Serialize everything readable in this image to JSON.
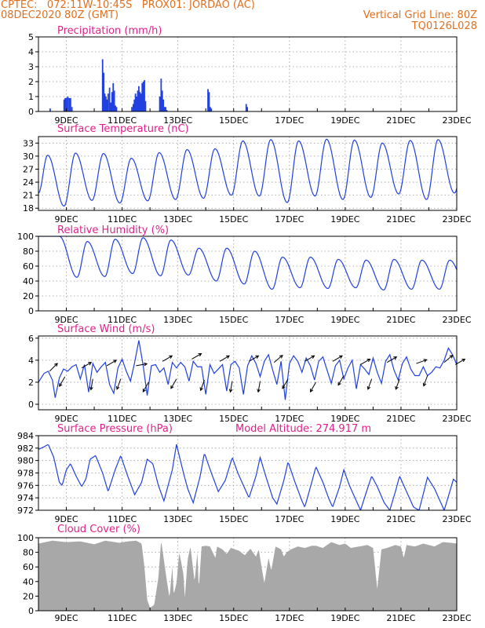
{
  "header": {
    "line1_left": "CPTEC:   072:11W-10:45S   PROX01: JORDAO (AC)",
    "line2_left": "08DEC2020 80Z (GMT)",
    "line2_right": "Vertical Grid Line: 80Z",
    "line3_right": "TQ0126L028",
    "color": "#e07020"
  },
  "colors": {
    "title": "#e0208a",
    "series": "#2040e0",
    "cloud": "#a8a8a8",
    "grid": "#9a9a9a",
    "axis": "#000000",
    "header": "#e07020"
  },
  "x_axis": {
    "start_day": 8,
    "end_day": 23,
    "tick_labels": [
      "9DEC",
      "11DEC",
      "13DEC",
      "15DEC",
      "17DEC",
      "19DEC",
      "21DEC",
      "23DEC"
    ],
    "tick_days": [
      9,
      11,
      13,
      15,
      17,
      19,
      21,
      23
    ]
  },
  "chart_data": [
    {
      "type": "bar",
      "title": "Precipitation (mm/h)",
      "xlabel": "",
      "ylabel": "",
      "ylim": [
        0,
        5
      ],
      "yticks": [
        0,
        1,
        2,
        3,
        4,
        5
      ],
      "bar_width_days": 0.05,
      "x": [
        8.42,
        8.92,
        8.96,
        9.0,
        9.05,
        9.1,
        9.15,
        9.2,
        10.3,
        10.34,
        10.38,
        10.42,
        10.46,
        10.5,
        10.55,
        10.6,
        10.64,
        10.68,
        10.72,
        10.76,
        10.8,
        11.35,
        11.4,
        11.44,
        11.48,
        11.52,
        11.56,
        11.6,
        11.64,
        11.68,
        11.72,
        11.76,
        11.8,
        11.84,
        12.35,
        12.4,
        12.44,
        12.48,
        12.52,
        12.56,
        12.6,
        14.08,
        14.12,
        14.16,
        14.2,
        15.45,
        15.49
      ],
      "values": [
        0.2,
        0.8,
        0.9,
        0.9,
        1.0,
        0.9,
        0.9,
        0.3,
        3.5,
        2.6,
        1.2,
        1.0,
        0.8,
        1.2,
        1.6,
        0.6,
        1.3,
        1.9,
        1.4,
        0.4,
        0.3,
        0.3,
        0.5,
        0.8,
        1.2,
        1.0,
        1.4,
        1.7,
        1.3,
        1.2,
        1.9,
        2.0,
        2.1,
        0.7,
        1.0,
        2.2,
        1.4,
        0.8,
        0.3,
        0.3,
        0.1,
        1.5,
        1.3,
        0.3,
        0.2,
        0.5,
        0.3
      ]
    },
    {
      "type": "line",
      "title": "Surface Temperature (nC)",
      "xlabel": "",
      "ylabel": "",
      "ylim": [
        17.5,
        34.5
      ],
      "yticks": [
        18,
        21,
        24,
        27,
        30,
        33
      ],
      "daily_cycle": {
        "max_phase_days": 0.33,
        "min_phase_days": 0.92,
        "daily_max": [
          30.2,
          30.7,
          30.6,
          29.5,
          30.8,
          31.5,
          31.7,
          33.5,
          33.8,
          33.5,
          33.9,
          33.7,
          33.0,
          33.6,
          33.8,
          33.5
        ],
        "daily_min": [
          18.5,
          19.8,
          19.2,
          19.7,
          20.0,
          20.3,
          21.0,
          20.8,
          19.3,
          20.8,
          20.0,
          20.5,
          21.3,
          20.0,
          21.5,
          22.5
        ]
      },
      "start_value": 21.5
    },
    {
      "type": "line",
      "title": "Relative Humidity (%)",
      "xlabel": "",
      "ylabel": "",
      "ylim": [
        0,
        100
      ],
      "yticks": [
        0,
        20,
        40,
        60,
        80,
        100
      ],
      "daily_cycle": {
        "max_phase_days": 0.75,
        "min_phase_days": 0.38,
        "daily_max": [
          100,
          93,
          96,
          98,
          95,
          84,
          84,
          80,
          72,
          72,
          69,
          68,
          69,
          68,
          68,
          66
        ],
        "daily_min": [
          100,
          45,
          46,
          50,
          47,
          48,
          40,
          36,
          29,
          31,
          30,
          31,
          28,
          29,
          29,
          30
        ]
      },
      "end_value": 35
    },
    {
      "type": "line",
      "title": "Surface Wind (m/s)",
      "xlabel": "",
      "ylabel": "",
      "ylim": [
        -0.5,
        6.2
      ],
      "yticks": [
        0,
        2,
        4,
        6
      ],
      "speed_series": {
        "x": [
          8.0,
          8.2,
          8.35,
          8.5,
          8.6,
          8.75,
          8.9,
          9.05,
          9.2,
          9.35,
          9.5,
          9.65,
          9.8,
          9.95,
          10.1,
          10.25,
          10.4,
          10.55,
          10.7,
          10.85,
          11.0,
          11.15,
          11.3,
          11.45,
          11.6,
          11.75,
          11.9,
          12.05,
          12.2,
          12.35,
          12.5,
          12.65,
          12.8,
          12.95,
          13.1,
          13.25,
          13.4,
          13.55,
          13.7,
          13.85,
          14.0,
          14.15,
          14.3,
          14.45,
          14.6,
          14.75,
          14.9,
          15.05,
          15.2,
          15.35,
          15.5,
          15.65,
          15.8,
          15.95,
          16.1,
          16.25,
          16.4,
          16.55,
          16.7,
          16.85,
          17.0,
          17.15,
          17.3,
          17.45,
          17.6,
          17.75,
          17.9,
          18.05,
          18.2,
          18.35,
          18.5,
          18.65,
          18.8,
          18.95,
          19.1,
          19.25,
          19.4,
          19.55,
          19.7,
          19.85,
          20.0,
          20.15,
          20.3,
          20.45,
          20.6,
          20.75,
          20.9,
          21.05,
          21.2,
          21.35,
          21.5,
          21.65,
          21.8,
          21.95,
          22.1,
          22.25,
          22.4,
          22.55,
          22.7,
          22.85,
          23.0
        ],
        "values": [
          2.0,
          2.8,
          3.0,
          2.2,
          0.6,
          2.4,
          3.2,
          3.0,
          3.4,
          3.6,
          2.3,
          3.6,
          1.1,
          3.7,
          2.9,
          3.4,
          3.8,
          1.8,
          1.0,
          3.3,
          4.1,
          3.0,
          2.1,
          3.8,
          5.8,
          3.6,
          0.8,
          3.5,
          3.6,
          2.9,
          3.3,
          1.8,
          3.8,
          3.3,
          3.8,
          3.4,
          2.1,
          3.9,
          3.4,
          3.4,
          0.9,
          3.6,
          2.8,
          3.2,
          3.6,
          1.2,
          3.6,
          3.9,
          3.3,
          0.9,
          3.5,
          4.4,
          3.7,
          2.5,
          3.9,
          4.5,
          3.1,
          1.8,
          3.9,
          0.4,
          3.7,
          4.4,
          3.9,
          2.9,
          4.2,
          3.5,
          2.2,
          3.9,
          4.3,
          3.1,
          1.9,
          3.5,
          4.0,
          2.3,
          3.3,
          4.0,
          1.4,
          3.6,
          3.2,
          2.7,
          4.2,
          2.9,
          1.9,
          3.9,
          4.5,
          3.1,
          2.2,
          3.7,
          4.3,
          3.2,
          2.6,
          2.6,
          3.4,
          2.6,
          2.9,
          3.4,
          3.3,
          4.0,
          5.1,
          4.5,
          3.6
        ]
      },
      "arrows": [
        {
          "day": 8.4,
          "speed": 3.0,
          "dir_deg": 45
        },
        {
          "day": 8.95,
          "speed": 2.5,
          "dir_deg": 210
        },
        {
          "day": 9.55,
          "speed": 3.3,
          "dir_deg": 60
        },
        {
          "day": 9.95,
          "speed": 2.3,
          "dir_deg": 190
        },
        {
          "day": 10.45,
          "speed": 3.5,
          "dir_deg": 60
        },
        {
          "day": 10.95,
          "speed": 2.3,
          "dir_deg": 200
        },
        {
          "day": 11.5,
          "speed": 3.5,
          "dir_deg": 80
        },
        {
          "day": 11.95,
          "speed": 2.0,
          "dir_deg": 210
        },
        {
          "day": 12.45,
          "speed": 3.9,
          "dir_deg": 60
        },
        {
          "day": 12.95,
          "speed": 2.3,
          "dir_deg": 210
        },
        {
          "day": 13.5,
          "speed": 4.1,
          "dir_deg": 60
        },
        {
          "day": 13.95,
          "speed": 2.2,
          "dir_deg": 200
        },
        {
          "day": 14.5,
          "speed": 3.9,
          "dir_deg": 60
        },
        {
          "day": 14.95,
          "speed": 2.1,
          "dir_deg": 190
        },
        {
          "day": 15.55,
          "speed": 3.9,
          "dir_deg": 60
        },
        {
          "day": 15.95,
          "speed": 2.1,
          "dir_deg": 190
        },
        {
          "day": 16.45,
          "speed": 3.8,
          "dir_deg": 50
        },
        {
          "day": 16.95,
          "speed": 2.3,
          "dir_deg": 210
        },
        {
          "day": 17.55,
          "speed": 3.9,
          "dir_deg": 60
        },
        {
          "day": 17.95,
          "speed": 2.0,
          "dir_deg": 210
        },
        {
          "day": 18.55,
          "speed": 3.9,
          "dir_deg": 60
        },
        {
          "day": 18.95,
          "speed": 2.6,
          "dir_deg": 210
        },
        {
          "day": 19.55,
          "speed": 3.6,
          "dir_deg": 60
        },
        {
          "day": 19.95,
          "speed": 2.3,
          "dir_deg": 200
        },
        {
          "day": 20.5,
          "speed": 3.8,
          "dir_deg": 60
        },
        {
          "day": 20.95,
          "speed": 2.3,
          "dir_deg": 200
        },
        {
          "day": 21.55,
          "speed": 3.7,
          "dir_deg": 70
        },
        {
          "day": 21.95,
          "speed": 2.6,
          "dir_deg": 200
        },
        {
          "day": 22.55,
          "speed": 3.8,
          "dir_deg": 50
        },
        {
          "day": 22.95,
          "speed": 3.6,
          "dir_deg": 60
        }
      ]
    },
    {
      "type": "line",
      "title": "Surface Pressure (hPa)",
      "annotation": "Model Altitude: 274.917 m",
      "xlabel": "",
      "ylabel": "",
      "ylim": [
        972,
        984
      ],
      "yticks": [
        972,
        974,
        976,
        978,
        980,
        982,
        984
      ],
      "points": [
        [
          8.0,
          981.8
        ],
        [
          8.2,
          982.2
        ],
        [
          8.35,
          982.6
        ],
        [
          8.55,
          980.5
        ],
        [
          8.75,
          976.5
        ],
        [
          8.85,
          976.0
        ],
        [
          9.0,
          978.5
        ],
        [
          9.15,
          979.5
        ],
        [
          9.35,
          977.5
        ],
        [
          9.55,
          975.8
        ],
        [
          9.7,
          977.0
        ],
        [
          9.85,
          980.2
        ],
        [
          10.05,
          980.8
        ],
        [
          10.3,
          978.0
        ],
        [
          10.5,
          975.0
        ],
        [
          10.75,
          978.5
        ],
        [
          10.95,
          980.8
        ],
        [
          11.2,
          977.5
        ],
        [
          11.45,
          974.5
        ],
        [
          11.7,
          976.5
        ],
        [
          11.9,
          980.2
        ],
        [
          12.1,
          979.5
        ],
        [
          12.3,
          976.0
        ],
        [
          12.5,
          973.5
        ],
        [
          12.8,
          978.5
        ],
        [
          12.95,
          982.6
        ],
        [
          13.2,
          978.0
        ],
        [
          13.35,
          975.5
        ],
        [
          13.55,
          973.2
        ],
        [
          13.8,
          977.5
        ],
        [
          13.95,
          981.2
        ],
        [
          14.2,
          978.0
        ],
        [
          14.45,
          975.0
        ],
        [
          14.7,
          976.8
        ],
        [
          14.95,
          980.5
        ],
        [
          15.15,
          978.0
        ],
        [
          15.4,
          975.5
        ],
        [
          15.55,
          974.0
        ],
        [
          15.8,
          977.5
        ],
        [
          15.95,
          980.5
        ],
        [
          16.15,
          977.5
        ],
        [
          16.4,
          974.0
        ],
        [
          16.55,
          973.0
        ],
        [
          16.8,
          976.8
        ],
        [
          16.95,
          979.8
        ],
        [
          17.2,
          976.5
        ],
        [
          17.45,
          973.5
        ],
        [
          17.55,
          972.5
        ],
        [
          17.8,
          976.5
        ],
        [
          17.95,
          979.0
        ],
        [
          18.2,
          976.5
        ],
        [
          18.4,
          974.0
        ],
        [
          18.55,
          972.5
        ],
        [
          18.8,
          975.8
        ],
        [
          18.95,
          978.5
        ],
        [
          19.15,
          976.0
        ],
        [
          19.4,
          973.5
        ],
        [
          19.55,
          972.0
        ],
        [
          19.8,
          975.5
        ],
        [
          19.95,
          977.5
        ],
        [
          20.15,
          975.8
        ],
        [
          20.4,
          973.2
        ],
        [
          20.6,
          972.0
        ],
        [
          20.8,
          975.0
        ],
        [
          20.95,
          977.5
        ],
        [
          21.2,
          975.0
        ],
        [
          21.45,
          972.5
        ],
        [
          21.65,
          972.0
        ],
        [
          21.85,
          975.5
        ],
        [
          21.95,
          977.3
        ],
        [
          22.2,
          975.5
        ],
        [
          22.45,
          973.0
        ],
        [
          22.55,
          972.0
        ],
        [
          22.75,
          975.0
        ],
        [
          22.88,
          977.0
        ],
        [
          23.0,
          976.5
        ]
      ]
    },
    {
      "type": "area",
      "title": "Cloud Cover (%)",
      "xlabel": "",
      "ylabel": "",
      "ylim": [
        0,
        100
      ],
      "yticks": [
        0,
        20,
        40,
        60,
        80,
        100
      ],
      "points": [
        [
          8.0,
          92
        ],
        [
          8.5,
          96
        ],
        [
          9.0,
          94
        ],
        [
          9.5,
          95
        ],
        [
          10.0,
          91
        ],
        [
          10.4,
          96
        ],
        [
          10.9,
          93
        ],
        [
          11.2,
          95
        ],
        [
          11.5,
          96
        ],
        [
          11.7,
          92
        ],
        [
          11.8,
          60
        ],
        [
          11.9,
          15
        ],
        [
          12.0,
          4
        ],
        [
          12.15,
          8
        ],
        [
          12.3,
          45
        ],
        [
          12.4,
          96
        ],
        [
          12.6,
          42
        ],
        [
          12.7,
          18
        ],
        [
          12.8,
          60
        ],
        [
          12.85,
          22
        ],
        [
          12.95,
          38
        ],
        [
          13.05,
          80
        ],
        [
          13.2,
          50
        ],
        [
          13.25,
          18
        ],
        [
          13.35,
          70
        ],
        [
          13.45,
          88
        ],
        [
          13.6,
          40
        ],
        [
          13.7,
          80
        ],
        [
          13.75,
          30
        ],
        [
          13.85,
          88
        ],
        [
          14.0,
          89
        ],
        [
          14.15,
          88
        ],
        [
          14.35,
          72
        ],
        [
          14.4,
          88
        ],
        [
          14.6,
          84
        ],
        [
          14.75,
          78
        ],
        [
          14.9,
          86
        ],
        [
          15.2,
          82
        ],
        [
          15.4,
          76
        ],
        [
          15.6,
          85
        ],
        [
          15.8,
          74
        ],
        [
          15.9,
          84
        ],
        [
          16.0,
          60
        ],
        [
          16.1,
          38
        ],
        [
          16.25,
          72
        ],
        [
          16.35,
          55
        ],
        [
          16.5,
          88
        ],
        [
          16.7,
          84
        ],
        [
          16.8,
          74
        ],
        [
          16.9,
          80
        ],
        [
          17.05,
          84
        ],
        [
          17.3,
          88
        ],
        [
          17.55,
          86
        ],
        [
          17.8,
          89
        ],
        [
          17.95,
          89
        ],
        [
          18.2,
          86
        ],
        [
          18.5,
          94
        ],
        [
          18.8,
          90
        ],
        [
          19.0,
          92
        ],
        [
          19.2,
          86
        ],
        [
          19.5,
          88
        ],
        [
          19.8,
          90
        ],
        [
          20.0,
          86
        ],
        [
          20.1,
          48
        ],
        [
          20.15,
          30
        ],
        [
          20.3,
          84
        ],
        [
          20.5,
          86
        ],
        [
          20.8,
          90
        ],
        [
          21.0,
          88
        ],
        [
          21.1,
          72
        ],
        [
          21.2,
          90
        ],
        [
          21.5,
          88
        ],
        [
          21.8,
          92
        ],
        [
          22.0,
          90
        ],
        [
          22.2,
          88
        ],
        [
          22.5,
          94
        ],
        [
          22.8,
          93
        ],
        [
          23.0,
          92
        ]
      ]
    }
  ]
}
